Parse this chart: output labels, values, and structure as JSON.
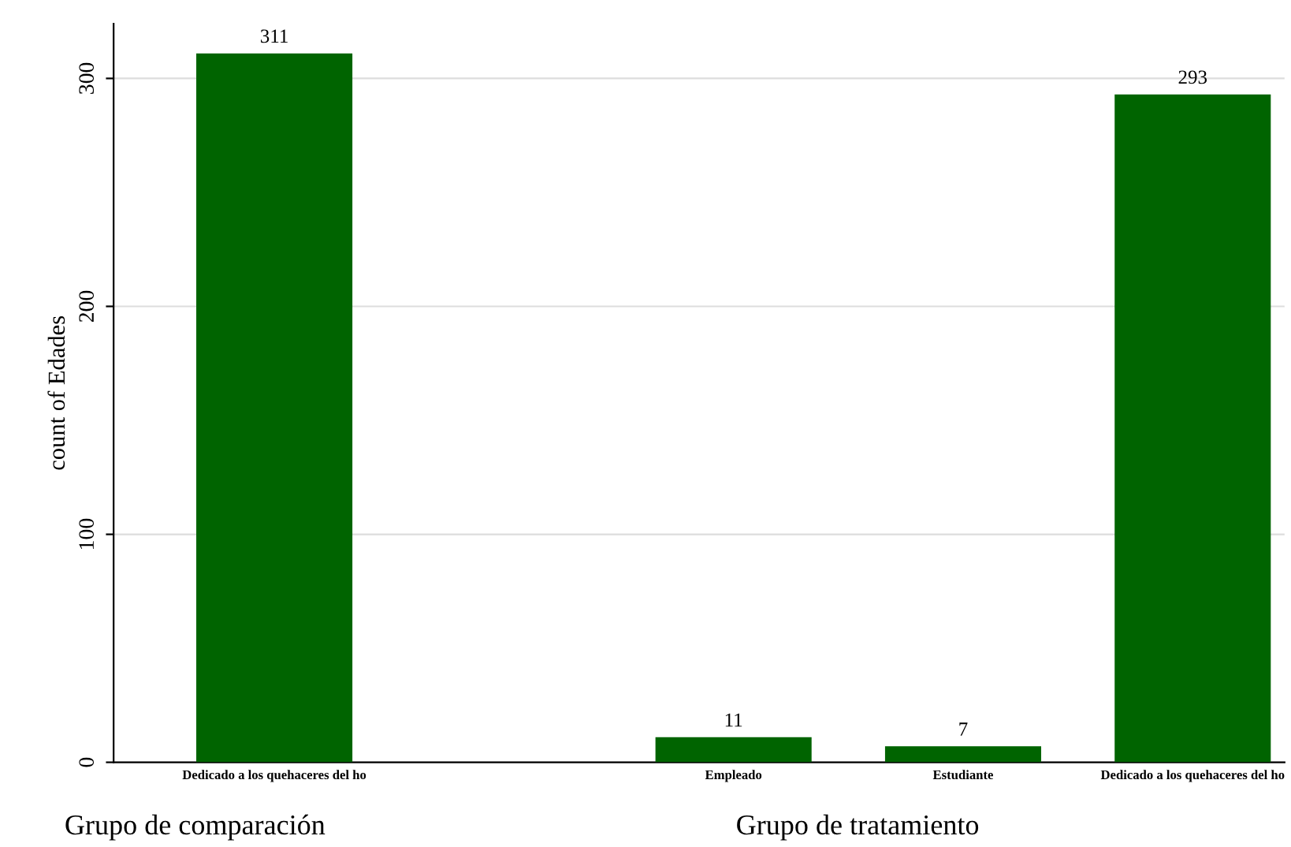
{
  "chart_data": {
    "type": "bar",
    "ylabel": "count of Edades",
    "categories": [
      "Dedicado a los quehaceres del ho",
      null,
      "Empleado",
      "Estudiante",
      "Dedicado a los quehaceres del ho"
    ],
    "values": [
      311,
      null,
      11,
      7,
      293
    ],
    "color": "#006400",
    "ylim": [
      0,
      324
    ],
    "yticks": [
      0,
      100,
      200,
      300
    ],
    "grid": "y",
    "data_labels": true,
    "annotations": [
      "Grupo de comparación",
      "Grupo de tratamiento"
    ]
  }
}
